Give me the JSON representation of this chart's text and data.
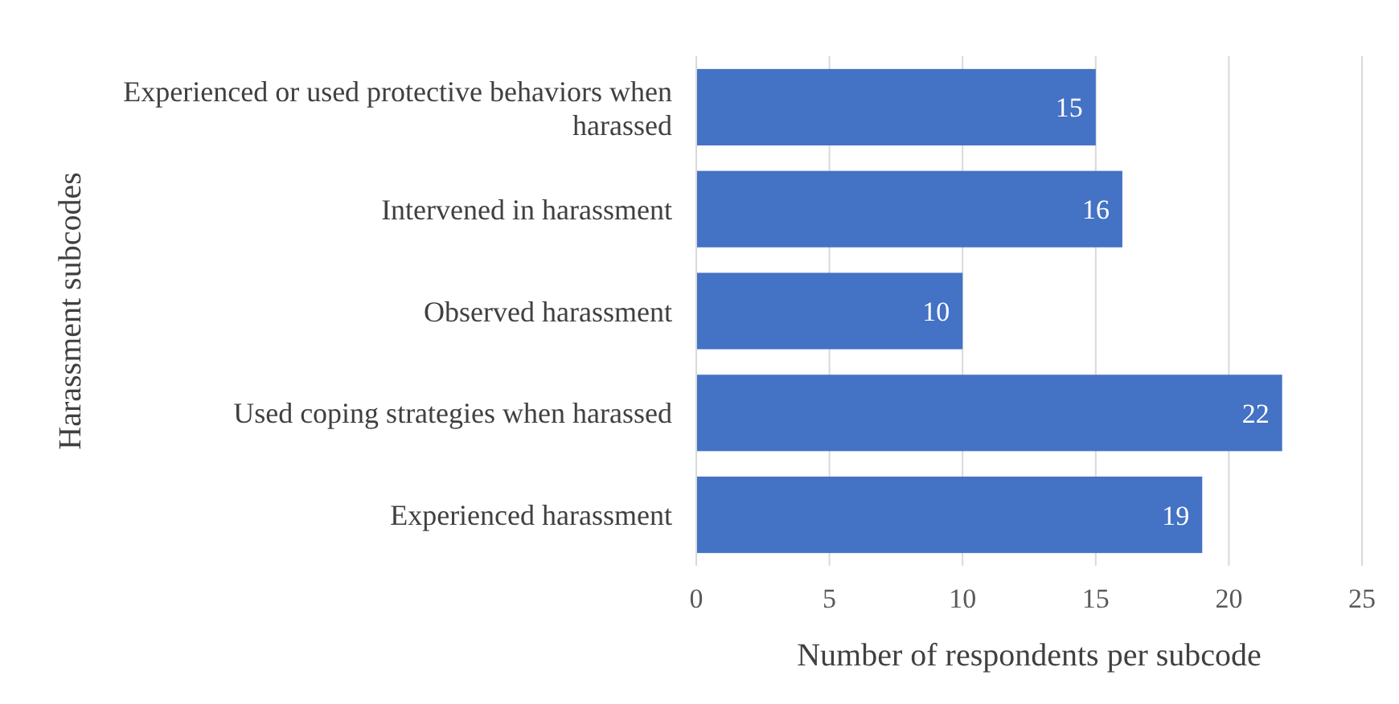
{
  "chart_data": {
    "type": "bar",
    "orientation": "horizontal",
    "ylabel": "Harassment subcodes",
    "xlabel": "Number of respondents per subcode",
    "categories": [
      "Experienced or used protective behaviors when harassed",
      "Intervened in harassment",
      "Observed harassment",
      "Used coping strategies when harassed",
      "Experienced harassment"
    ],
    "values": [
      15,
      16,
      10,
      22,
      19
    ],
    "color": "#4472c4",
    "xlim": [
      0,
      25
    ],
    "xticks": [
      0,
      5,
      10,
      15,
      20,
      25
    ],
    "grid": "x",
    "data_labels": true
  }
}
